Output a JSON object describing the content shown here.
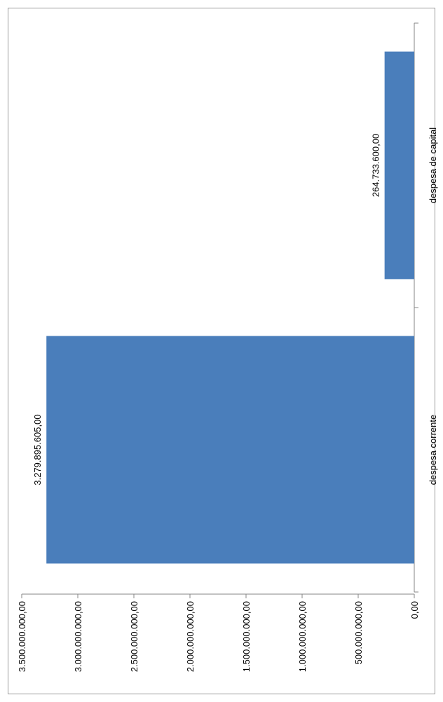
{
  "chart_data": {
    "type": "bar",
    "orientation": "horizontal",
    "categories": [
      "despesa corrente",
      "despesa de capital"
    ],
    "values": [
      3279895605.0,
      264733600.0
    ],
    "value_labels": [
      "3.279.895.605,00",
      "264.733.600,00"
    ],
    "ylim": [
      0,
      3500000000
    ],
    "ticks": [
      0,
      500000000,
      1000000000,
      1500000000,
      2000000000,
      2500000000,
      3000000000,
      3500000000
    ],
    "tick_labels": [
      "0,00",
      "500.000.000,00",
      "1.000.000.000,00",
      "1.500.000.000,00",
      "2.000.000.000,00",
      "2.500.000.000,00",
      "3.000.000.000,00",
      "3.500.000.000,00"
    ],
    "title": "",
    "xlabel": "",
    "ylabel": "",
    "grid": false,
    "legend": "none",
    "bar_color": "#4a7ebb"
  }
}
